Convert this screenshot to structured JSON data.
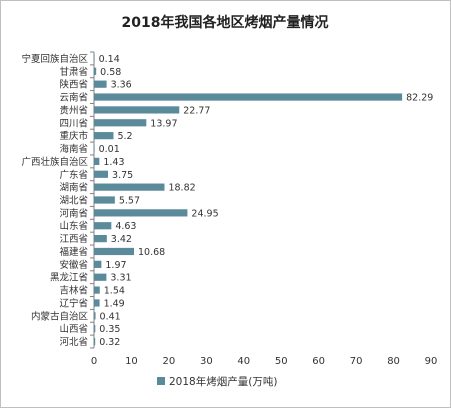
{
  "chart_data": {
    "type": "bar",
    "orientation": "horizontal",
    "title": "2018年我国各地区烤烟产量情况",
    "xlabel": "",
    "ylabel": "",
    "xlim": [
      0,
      90
    ],
    "x_ticks": [
      "0",
      "10",
      "20",
      "30",
      "40",
      "50",
      "60",
      "70",
      "80",
      "90"
    ],
    "grid": false,
    "legend_position": "bottom",
    "bar_color": "#5b8a9a",
    "categories": [
      "宁夏回族自治区",
      "甘肃省",
      "陕西省",
      "云南省",
      "贵州省",
      "四川省",
      "重庆市",
      "海南省",
      "广西壮族自治区",
      "广东省",
      "湖南省",
      "湖北省",
      "河南省",
      "山东省",
      "江西省",
      "福建省",
      "安徽省",
      "黑龙江省",
      "吉林省",
      "辽宁省",
      "内蒙古自治区",
      "山西省",
      "河北省"
    ],
    "series": [
      {
        "name": "2018年烤烟产量(万吨)",
        "values": [
          0.14,
          0.58,
          3.36,
          82.29,
          22.77,
          13.97,
          5.2,
          0.01,
          1.43,
          3.75,
          18.82,
          5.57,
          24.95,
          4.63,
          3.42,
          10.68,
          1.97,
          3.31,
          1.54,
          1.49,
          0.41,
          0.35,
          0.32
        ],
        "labels": [
          "0.14",
          "0.58",
          "3.36",
          "82.29",
          "22.77",
          "13.97",
          "5.2",
          "0.01",
          "1.43",
          "3.75",
          "18.82",
          "5.57",
          "24.95",
          "4.63",
          "3.42",
          "10.68",
          "1.97",
          "3.31",
          "1.54",
          "1.49",
          "0.41",
          "0.35",
          "0.32"
        ]
      }
    ]
  }
}
